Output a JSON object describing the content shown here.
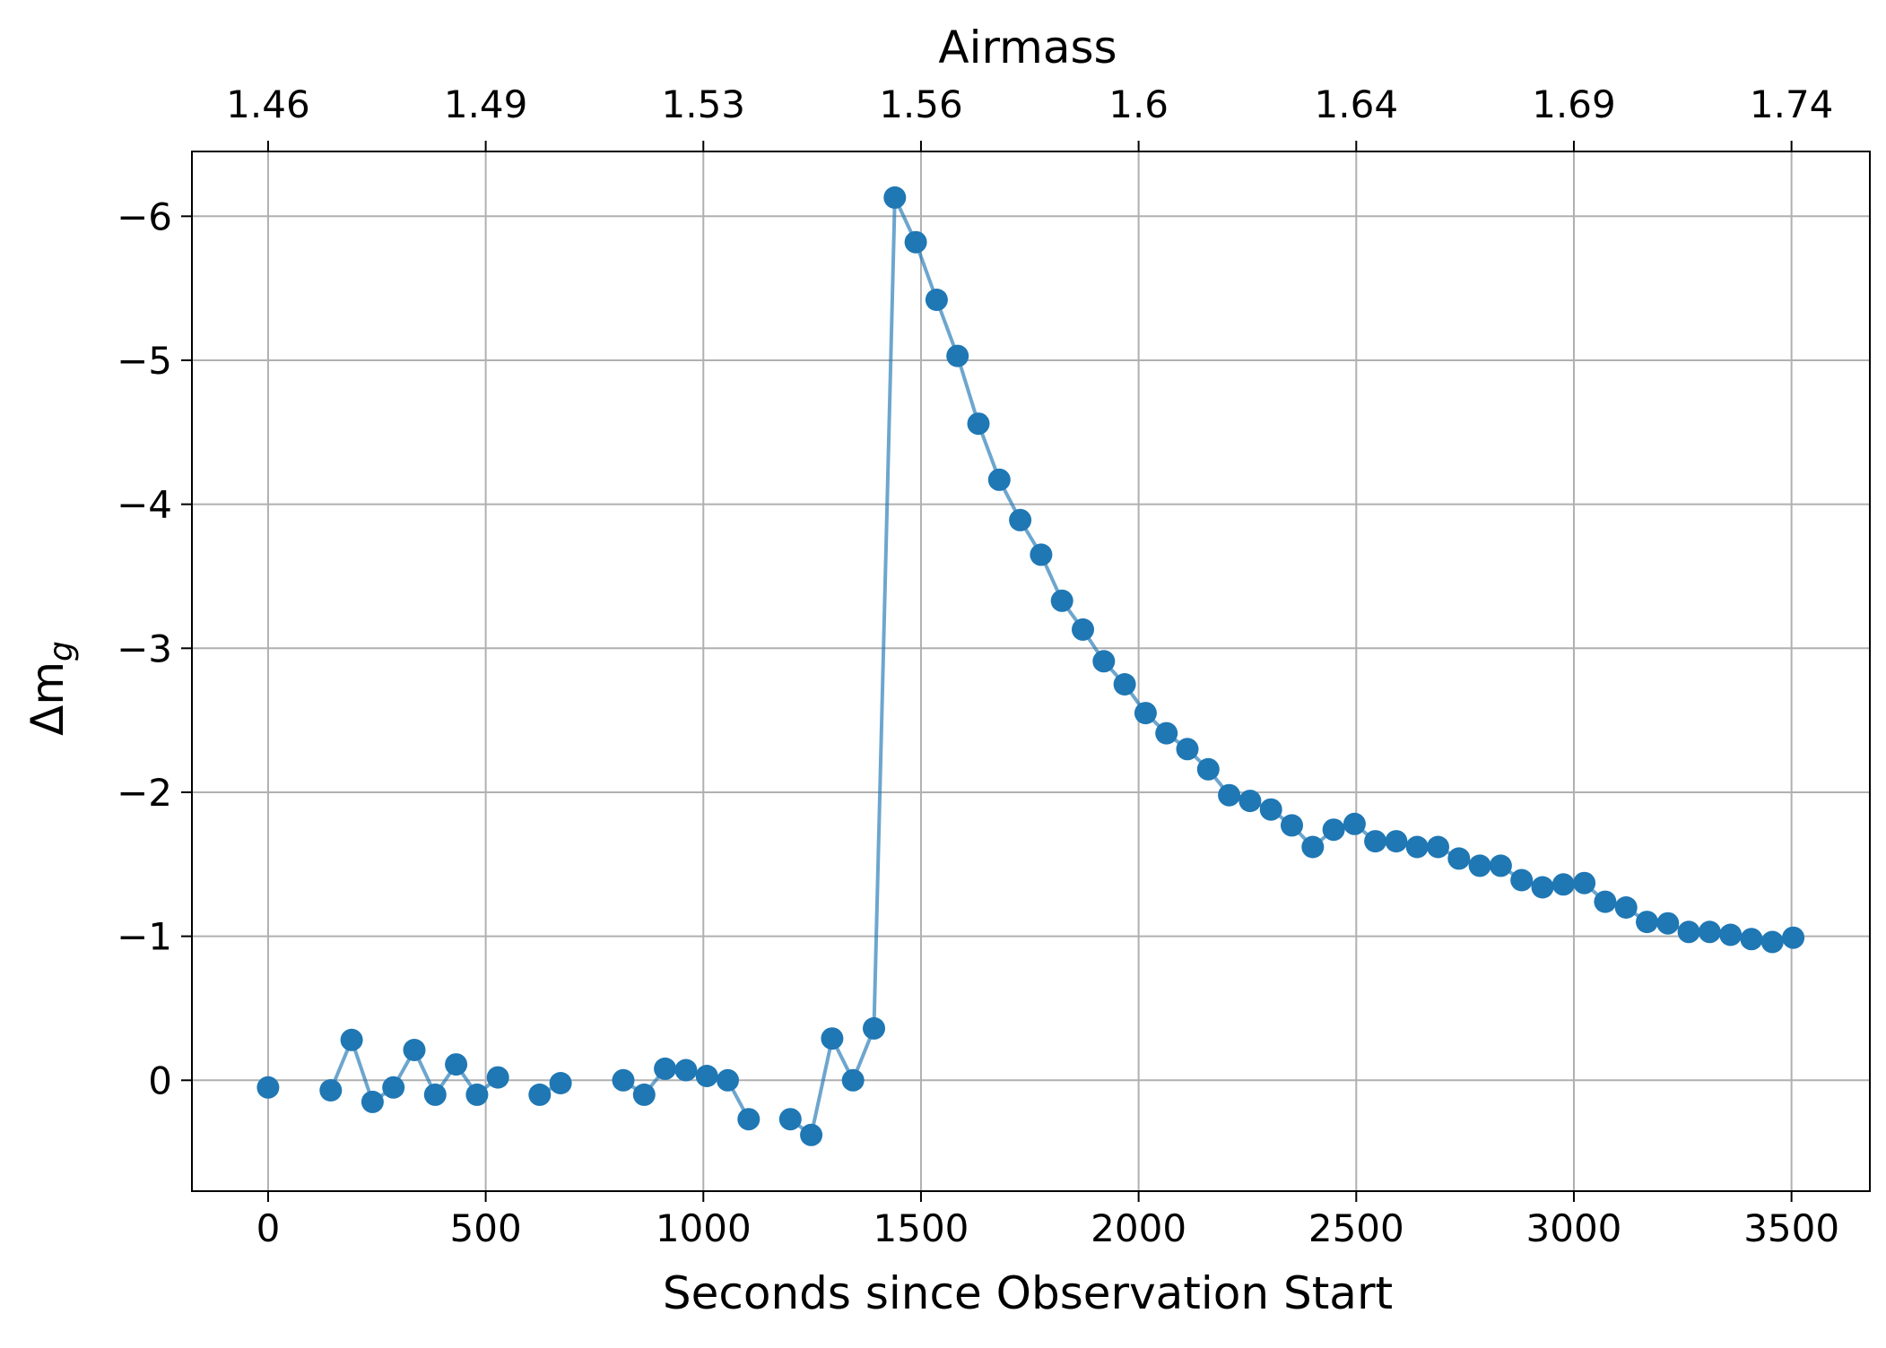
{
  "chart_data": {
    "type": "line",
    "xlabel": "Seconds since Observation Start",
    "ylabel": "Δm",
    "ylabel_subscript": "g",
    "top_xlabel": "Airmass",
    "xlim": [
      -175,
      3680
    ],
    "ylim": [
      0.77,
      -6.45
    ],
    "y_inverted": true,
    "grid": true,
    "x_ticks": [
      {
        "value": 0,
        "label": "0"
      },
      {
        "value": 500,
        "label": "500"
      },
      {
        "value": 1000,
        "label": "1000"
      },
      {
        "value": 1500,
        "label": "1500"
      },
      {
        "value": 2000,
        "label": "2000"
      },
      {
        "value": 2500,
        "label": "2500"
      },
      {
        "value": 3000,
        "label": "3000"
      },
      {
        "value": 3500,
        "label": "3500"
      }
    ],
    "y_ticks": [
      {
        "value": 0,
        "label": "0"
      },
      {
        "value": -1,
        "label": "−1"
      },
      {
        "value": -2,
        "label": "−2"
      },
      {
        "value": -3,
        "label": "−3"
      },
      {
        "value": -4,
        "label": "−4"
      },
      {
        "value": -5,
        "label": "−5"
      },
      {
        "value": -6,
        "label": "−6"
      }
    ],
    "top_ticks": [
      {
        "value": 0,
        "label": "1.46"
      },
      {
        "value": 500,
        "label": "1.49"
      },
      {
        "value": 1000,
        "label": "1.53"
      },
      {
        "value": 1500,
        "label": "1.56"
      },
      {
        "value": 2000,
        "label": "1.6"
      },
      {
        "value": 2500,
        "label": "1.64"
      },
      {
        "value": 3000,
        "label": "1.69"
      },
      {
        "value": 3500,
        "label": "1.74"
      }
    ],
    "colors": {
      "series": "#1f77b4",
      "grid": "#b0b0b0",
      "axis": "#000000"
    },
    "series": [
      {
        "segments": [
          {
            "x": [
              0
            ],
            "y": [
              0.05
            ]
          },
          {
            "x": [
              144,
              192,
              240,
              288,
              336,
              384,
              432,
              480,
              528
            ],
            "y": [
              0.07,
              -0.28,
              0.15,
              0.05,
              -0.21,
              0.1,
              -0.11,
              0.1,
              -0.02
            ]
          },
          {
            "x": [
              624,
              672
            ],
            "y": [
              0.1,
              0.02
            ]
          },
          {
            "x": [
              816,
              864,
              912,
              960,
              1008,
              1056,
              1104
            ],
            "y": [
              0.0,
              0.1,
              -0.08,
              -0.07,
              -0.03,
              0.0,
              0.27
            ]
          },
          {
            "x": [
              1200,
              1248,
              1296,
              1344,
              1392,
              1440,
              1488,
              1536,
              1584,
              1632,
              1680,
              1728,
              1776,
              1824,
              1872,
              1920,
              1968,
              2016,
              2064,
              2112,
              2160,
              2208,
              2256,
              2304,
              2352,
              2400,
              2448,
              2496,
              2544,
              2592,
              2640,
              2688,
              2736,
              2784,
              2832,
              2880,
              2928,
              2976,
              3024,
              3072,
              3120,
              3168,
              3216,
              3264,
              3312,
              3360,
              3408,
              3456,
              3504
            ],
            "y": [
              0.27,
              0.38,
              -0.29,
              0.0,
              -0.36,
              -6.13,
              -5.82,
              -5.42,
              -5.03,
              -4.56,
              -4.17,
              -3.89,
              -3.65,
              -3.33,
              -3.13,
              -2.91,
              -2.75,
              -2.55,
              -2.41,
              -2.3,
              -2.16,
              -1.98,
              -1.94,
              -1.88,
              -1.77,
              -1.62,
              -1.74,
              -1.78,
              -1.66,
              -1.66,
              -1.62,
              -1.62,
              -1.54,
              -1.49,
              -1.49,
              -1.39,
              -1.34,
              -1.36,
              -1.37,
              -1.24,
              -1.2,
              -1.1,
              -1.09,
              -1.03,
              -1.03,
              -1.01,
              -0.98,
              -0.96,
              -0.99
            ]
          }
        ]
      }
    ]
  }
}
